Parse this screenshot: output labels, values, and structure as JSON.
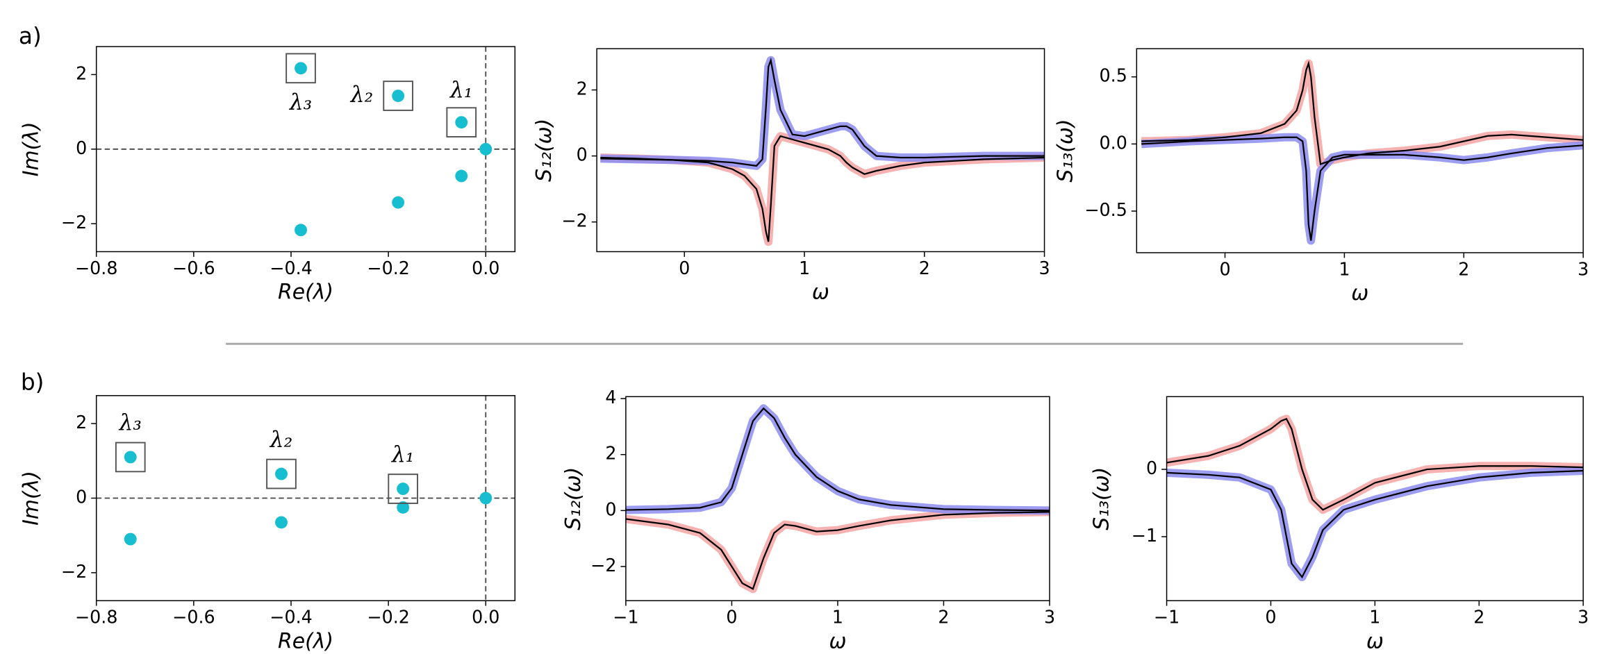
{
  "panel_labels": [
    "a)",
    "b)"
  ],
  "chart_data": [
    {
      "type": "scatter",
      "x_label": "Re(λ)",
      "y_label": "Im(λ)",
      "color": "#17becf",
      "zero_lines": true,
      "x": [
        0,
        -0.05,
        -0.05,
        -0.18,
        -0.18,
        -0.38,
        -0.38
      ],
      "y": [
        0,
        0.72,
        -0.72,
        1.43,
        -1.43,
        2.17,
        -2.17
      ],
      "annotations": [
        "λ₁",
        "λ₂",
        "λ₃"
      ],
      "xlim": [
        -0.8,
        0.06
      ],
      "ylim": [
        -2.75,
        2.75
      ],
      "xticks": [
        {
          "value": -0.8,
          "label": "−0.8"
        },
        {
          "value": -0.6,
          "label": "−0.6"
        },
        {
          "value": -0.4,
          "label": "−0.4"
        },
        {
          "value": -0.2,
          "label": "−0.2"
        },
        {
          "value": 0,
          "label": "0.0"
        }
      ],
      "yticks": [
        {
          "value": -2,
          "label": "−2"
        },
        0,
        2
      ]
    },
    {
      "type": "line",
      "x_label": "ω",
      "y_label": "S₁₂(ω)",
      "overlay_color": "#000",
      "x": [
        -0.7,
        -0.4,
        -0.1,
        0.2,
        0.4,
        0.5,
        0.6,
        0.65,
        0.68,
        0.7,
        0.72,
        0.75,
        0.8,
        0.9,
        1.0,
        1.1,
        1.2,
        1.3,
        1.35,
        1.4,
        1.5,
        1.6,
        1.8,
        2.0,
        2.5,
        3.0
      ],
      "series": [
        {
          "color": "#f4a3a3",
          "values": [
            -0.05,
            -0.08,
            -0.12,
            -0.2,
            -0.4,
            -0.6,
            -1.0,
            -1.6,
            -2.3,
            -2.6,
            -1.5,
            0.3,
            0.6,
            0.5,
            0.4,
            0.3,
            0.2,
            0.0,
            -0.2,
            -0.35,
            -0.55,
            -0.45,
            -0.3,
            -0.2,
            -0.1,
            -0.05
          ]
        },
        {
          "color": "#8c8cf0",
          "values": [
            -0.08,
            -0.1,
            -0.12,
            -0.15,
            -0.2,
            -0.25,
            -0.3,
            -0.1,
            1.5,
            2.7,
            2.9,
            2.3,
            1.4,
            0.65,
            0.6,
            0.7,
            0.8,
            0.9,
            0.9,
            0.8,
            0.3,
            0.0,
            -0.05,
            -0.05,
            0.0,
            0.0
          ]
        }
      ],
      "xlim": [
        -0.73,
        3
      ],
      "ylim": [
        -2.9,
        3.25
      ],
      "xticks": [
        0,
        1,
        2,
        3
      ],
      "yticks": [
        {
          "value": -2,
          "label": "−2"
        },
        0,
        2
      ]
    },
    {
      "type": "line",
      "x_label": "ω",
      "y_label": "S₁₃(ω)",
      "overlay_color": "#000",
      "x": [
        -0.7,
        -0.3,
        0,
        0.3,
        0.5,
        0.6,
        0.65,
        0.68,
        0.7,
        0.72,
        0.75,
        0.8,
        0.9,
        1.0,
        1.2,
        1.5,
        1.8,
        2.0,
        2.2,
        2.4,
        2.7,
        3.0
      ],
      "series": [
        {
          "color": "#f4a3a3",
          "values": [
            0.02,
            0.03,
            0.05,
            0.08,
            0.15,
            0.25,
            0.4,
            0.55,
            0.6,
            0.5,
            0.2,
            -0.15,
            -0.12,
            -0.1,
            -0.07,
            -0.05,
            -0.02,
            0.02,
            0.06,
            0.07,
            0.05,
            0.03
          ]
        },
        {
          "color": "#8c8cf0",
          "values": [
            0.0,
            0.02,
            0.03,
            0.04,
            0.05,
            0.05,
            0.02,
            -0.2,
            -0.6,
            -0.72,
            -0.5,
            -0.2,
            -0.1,
            -0.08,
            -0.08,
            -0.08,
            -0.1,
            -0.12,
            -0.1,
            -0.07,
            -0.03,
            -0.01
          ]
        }
      ],
      "xlim": [
        -0.74,
        3
      ],
      "ylim": [
        -0.81,
        0.71
      ],
      "xticks": [
        0,
        1,
        2,
        3
      ],
      "yticks": [
        {
          "value": -0.5,
          "label": "−0.5"
        },
        {
          "value": 0,
          "label": "0.0"
        },
        0.5
      ]
    },
    {
      "type": "scatter",
      "x_label": "Re(λ)",
      "y_label": "Im(λ)",
      "color": "#17becf",
      "zero_lines": true,
      "x": [
        0,
        -0.17,
        -0.17,
        -0.42,
        -0.42,
        -0.73,
        -0.73
      ],
      "y": [
        0,
        0.25,
        -0.25,
        0.65,
        -0.65,
        1.1,
        -1.1
      ],
      "annotations": [
        "λ₁",
        "λ₂",
        "λ₃"
      ],
      "xlim": [
        -0.8,
        0.06
      ],
      "ylim": [
        -2.75,
        2.75
      ],
      "xticks": [
        {
          "value": -0.8,
          "label": "−0.8"
        },
        {
          "value": -0.6,
          "label": "−0.6"
        },
        {
          "value": -0.4,
          "label": "−0.4"
        },
        {
          "value": -0.2,
          "label": "−0.2"
        },
        {
          "value": 0,
          "label": "0.0"
        }
      ],
      "yticks": [
        {
          "value": -2,
          "label": "−2"
        },
        0,
        2
      ]
    },
    {
      "type": "line",
      "x_label": "ω",
      "y_label": "S₁₂(ω)",
      "overlay_color": "#000",
      "x": [
        -1,
        -0.6,
        -0.3,
        -0.1,
        0,
        0.1,
        0.2,
        0.3,
        0.4,
        0.5,
        0.6,
        0.8,
        1.0,
        1.2,
        1.5,
        2,
        2.5,
        3
      ],
      "series": [
        {
          "color": "#f4a3a3",
          "values": [
            -0.3,
            -0.5,
            -0.8,
            -1.4,
            -2.0,
            -2.6,
            -2.8,
            -1.7,
            -0.8,
            -0.5,
            -0.55,
            -0.75,
            -0.7,
            -0.55,
            -0.35,
            -0.15,
            -0.08,
            -0.05
          ]
        },
        {
          "color": "#8c8cf0",
          "values": [
            0.02,
            0.05,
            0.1,
            0.3,
            0.8,
            2.0,
            3.2,
            3.65,
            3.3,
            2.6,
            2.0,
            1.2,
            0.7,
            0.4,
            0.2,
            0.05,
            0.02,
            0.0
          ]
        }
      ],
      "xlim": [
        -1,
        3
      ],
      "ylim": [
        -3.22,
        4.07
      ],
      "xticks": [
        {
          "value": -1,
          "label": "−1"
        },
        0,
        1,
        2,
        3
      ],
      "yticks": [
        {
          "value": -2,
          "label": "−2"
        },
        0,
        2,
        4
      ]
    },
    {
      "type": "line",
      "x_label": "ω",
      "y_label": "S₁₃(ω)",
      "overlay_color": "#000",
      "x": [
        -1,
        -0.6,
        -0.3,
        0,
        0.1,
        0.15,
        0.2,
        0.3,
        0.4,
        0.5,
        0.7,
        1,
        1.5,
        2,
        2.5,
        3
      ],
      "series": [
        {
          "color": "#f4a3a3",
          "values": [
            0.1,
            0.2,
            0.35,
            0.6,
            0.72,
            0.75,
            0.6,
            0.0,
            -0.45,
            -0.6,
            -0.45,
            -0.2,
            0.0,
            0.05,
            0.05,
            0.03
          ]
        },
        {
          "color": "#8c8cf0",
          "values": [
            -0.05,
            -0.08,
            -0.12,
            -0.3,
            -0.6,
            -1.0,
            -1.4,
            -1.6,
            -1.3,
            -0.9,
            -0.6,
            -0.45,
            -0.25,
            -0.12,
            -0.05,
            -0.02
          ]
        }
      ],
      "xlim": [
        -1,
        3
      ],
      "ylim": [
        -1.95,
        1.08
      ],
      "xticks": [
        {
          "value": -1,
          "label": "−1"
        },
        0,
        1,
        2,
        3
      ],
      "yticks": [
        {
          "value": -1,
          "label": "−1"
        },
        0
      ]
    }
  ]
}
